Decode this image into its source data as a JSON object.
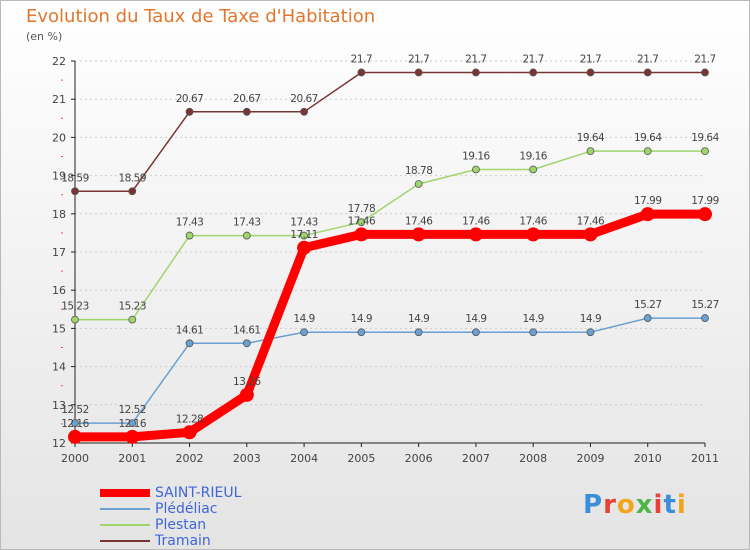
{
  "title": "Evolution du Taux de Taxe d'Habitation",
  "unit_label": "(en %)",
  "logo_text": "Proxiti",
  "colors": {
    "title": "#e2762c",
    "axis": "#222222",
    "grid": "#cccccc",
    "label": "#444444",
    "legend_text": "#3f67d8"
  },
  "chart_data": {
    "type": "line",
    "title": "Evolution du Taux de Taxe d'Habitation",
    "ylabel": "(en %)",
    "xlabel": "",
    "x": [
      "2000",
      "2001",
      "2002",
      "2003",
      "2004",
      "2005",
      "2006",
      "2007",
      "2008",
      "2009",
      "2010",
      "2011"
    ],
    "ylim": [
      12,
      22
    ],
    "yticks": [
      12,
      13,
      14,
      15,
      16,
      17,
      18,
      19,
      20,
      21,
      22
    ],
    "grid": true,
    "legend_position": "bottom-left",
    "series": [
      {
        "name": "SAINT-RIEUL",
        "color": "#ff0000",
        "values": [
          12.16,
          12.16,
          12.28,
          13.26,
          17.11,
          17.46,
          17.46,
          17.46,
          17.46,
          17.46,
          17.99,
          17.99
        ],
        "labels": [
          "12.16",
          "12.16",
          "12.28",
          "13.26",
          "17.11",
          "17.46",
          "17.46",
          "17.46",
          "17.46",
          "17.46",
          "17.99",
          "17.99"
        ]
      },
      {
        "name": "Plédéliac",
        "color": "#6aa0d2",
        "values": [
          12.52,
          12.52,
          14.61,
          14.61,
          14.9,
          14.9,
          14.9,
          14.9,
          14.9,
          14.9,
          15.27,
          15.27
        ],
        "labels": [
          "12.52",
          "12.52",
          "14.61",
          "14.61",
          "14.9",
          "14.9",
          "14.9",
          "14.9",
          "14.9",
          "14.9",
          "15.27",
          "15.27"
        ]
      },
      {
        "name": "Plestan",
        "color": "#9ed66c",
        "values": [
          15.23,
          15.23,
          17.43,
          17.43,
          17.43,
          17.78,
          18.78,
          19.16,
          19.16,
          19.64,
          19.64,
          19.64
        ],
        "labels": [
          "15.23",
          "15.23",
          "17.43",
          "17.43",
          "17.43",
          "17.78",
          "18.78",
          "19.16",
          "19.16",
          "19.64",
          "19.64",
          "19.64"
        ]
      },
      {
        "name": "Tramain",
        "color": "#7a3434",
        "values": [
          18.59,
          18.59,
          20.67,
          20.67,
          20.67,
          21.7,
          21.7,
          21.7,
          21.7,
          21.7,
          21.7,
          21.7
        ],
        "labels": [
          "18.59",
          "18.59",
          "20.67",
          "20.67",
          "20.67",
          "21.7",
          "21.7",
          "21.7",
          "21.7",
          "21.7",
          "21.7",
          "21.7"
        ]
      }
    ]
  }
}
